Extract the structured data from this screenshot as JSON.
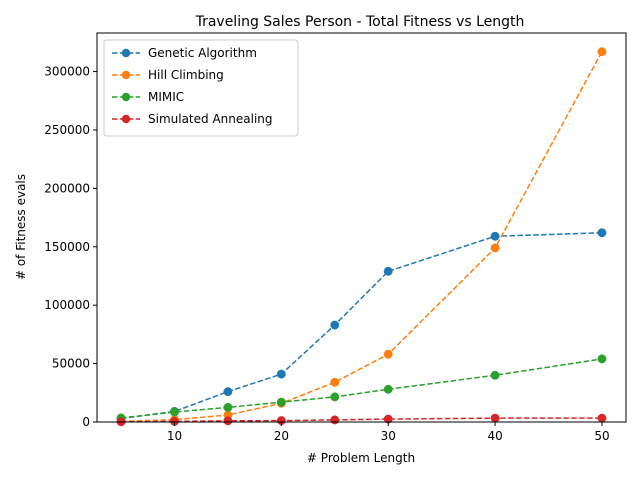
{
  "chart_data": {
    "type": "line",
    "title": "Traveling Sales Person - Total Fitness vs Length",
    "xlabel": "# Problem Length",
    "ylabel": "# of Fitness evals",
    "x": [
      5,
      10,
      15,
      20,
      25,
      30,
      40,
      50
    ],
    "xlim": [
      2.75,
      52.25
    ],
    "ylim": [
      0,
      333000
    ],
    "xticks": [
      10,
      20,
      30,
      40,
      50
    ],
    "yticks": [
      0,
      50000,
      100000,
      150000,
      200000,
      250000,
      300000
    ],
    "ytick_labels": [
      "0",
      "50000",
      "100000",
      "150000",
      "200000",
      "250000",
      "300000"
    ],
    "xtick_labels": [
      "10",
      "20",
      "30",
      "40",
      "50"
    ],
    "grid": false,
    "legend_position": "top-left",
    "line_style": "dashed",
    "marker": "circle",
    "series": [
      {
        "name": "Genetic Algorithm",
        "color": "#1f77b4",
        "values": [
          3000,
          9000,
          26000,
          41000,
          83000,
          129000,
          159000,
          162000
        ]
      },
      {
        "name": "Hill Climbing",
        "color": "#ff7f0e",
        "values": [
          500,
          2000,
          6000,
          16000,
          34000,
          58000,
          149000,
          317000
        ]
      },
      {
        "name": "MIMIC",
        "color": "#2ca02c",
        "values": [
          3500,
          8500,
          12500,
          17000,
          21500,
          28000,
          40000,
          54000
        ]
      },
      {
        "name": "Simulated Annealing",
        "color": "#d62728",
        "values": [
          200,
          500,
          1000,
          1200,
          1800,
          2500,
          3300,
          3300
        ]
      }
    ]
  }
}
